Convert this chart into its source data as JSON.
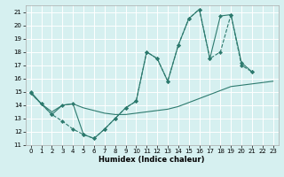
{
  "xlabel": "Humidex (Indice chaleur)",
  "xlim": [
    -0.5,
    23.5
  ],
  "ylim": [
    11,
    21.5
  ],
  "yticks": [
    11,
    12,
    13,
    14,
    15,
    16,
    17,
    18,
    19,
    20,
    21
  ],
  "xticks": [
    0,
    1,
    2,
    3,
    4,
    5,
    6,
    7,
    8,
    9,
    10,
    11,
    12,
    13,
    14,
    15,
    16,
    17,
    18,
    19,
    20,
    21,
    22,
    23
  ],
  "background_color": "#d6f0f0",
  "grid_color": "#ffffff",
  "line_color": "#2d7a6e",
  "line1_x": [
    0,
    1,
    2,
    3,
    4,
    5,
    6,
    7,
    8,
    9,
    10,
    11,
    12,
    13,
    14,
    15,
    16,
    17,
    18,
    19,
    20,
    21
  ],
  "line1_y": [
    14.9,
    14.1,
    13.3,
    12.8,
    12.2,
    11.8,
    11.5,
    12.2,
    13.0,
    13.8,
    14.3,
    18.0,
    17.5,
    15.8,
    18.5,
    20.5,
    21.2,
    17.5,
    18.0,
    20.8,
    17.0,
    16.5
  ],
  "line2_x": [
    0,
    1,
    2,
    3,
    4,
    5,
    6,
    7,
    8,
    9,
    10,
    11,
    12,
    13,
    14,
    15,
    16,
    17,
    18,
    19,
    20,
    21,
    22,
    23
  ],
  "line2_y": [
    14.9,
    14.1,
    13.5,
    14.0,
    14.1,
    13.8,
    13.6,
    13.4,
    13.3,
    13.3,
    13.4,
    13.5,
    13.6,
    13.7,
    13.9,
    14.2,
    14.5,
    14.8,
    15.1,
    15.4,
    15.5,
    15.6,
    15.7,
    15.8
  ],
  "line3_x": [
    0,
    1,
    2,
    3,
    4,
    5,
    6,
    7,
    8,
    9,
    10,
    11,
    12,
    13,
    14,
    15,
    16,
    17,
    18,
    19,
    20,
    21
  ],
  "line3_y": [
    15.0,
    14.1,
    13.3,
    14.0,
    14.1,
    11.8,
    11.5,
    12.2,
    13.0,
    13.8,
    14.3,
    18.0,
    17.5,
    15.8,
    18.5,
    20.5,
    21.2,
    17.5,
    20.7,
    20.8,
    17.2,
    16.5
  ]
}
